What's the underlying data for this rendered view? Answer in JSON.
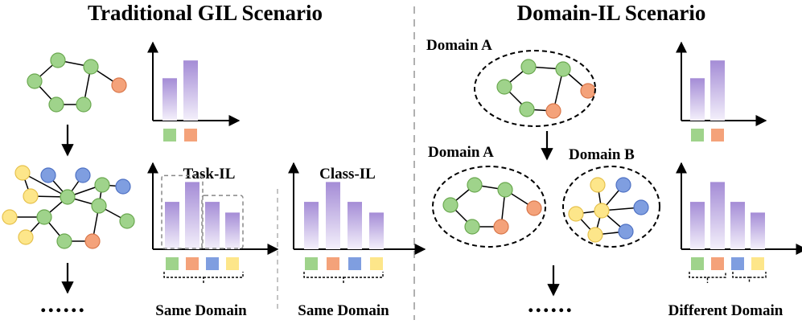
{
  "titles": {
    "left": "Traditional GIL Scenario",
    "right": "Domain-IL Scenario"
  },
  "labels": {
    "task_il": "Task-IL",
    "class_il": "Class-IL",
    "same_domain_1": "Same Domain",
    "same_domain_2": "Same Domain",
    "domain_a_top": "Domain A",
    "domain_a_bottom": "Domain A",
    "domain_b": "Domain B",
    "different_domain": "Different Domain",
    "ellipsis_left": "......",
    "ellipsis_right": "......"
  },
  "colors": {
    "green": "#9fd38b",
    "green_stroke": "#6aa84f",
    "orange": "#f4a27a",
    "orange_stroke": "#d9774a",
    "blue": "#7f9ee0",
    "blue_stroke": "#4f72c4",
    "yellow": "#fde68a",
    "yellow_stroke": "#e6c14c",
    "bar_top": "#a48cd6",
    "bar_bottom": "#f4f0fb",
    "divider": "#b0b0b0"
  },
  "chart_data": [
    {
      "id": "trad-stage1",
      "type": "bar",
      "values": [
        0.62,
        0.88
      ],
      "class_colors": [
        "green",
        "orange"
      ]
    },
    {
      "id": "task-il",
      "type": "bar",
      "values": [
        0.62,
        0.88,
        0.62,
        0.48
      ],
      "class_colors": [
        "green",
        "orange",
        "blue",
        "yellow"
      ],
      "groups": [
        [
          0,
          1
        ],
        [
          2,
          3
        ]
      ]
    },
    {
      "id": "class-il",
      "type": "bar",
      "values": [
        0.62,
        0.88,
        0.62,
        0.48
      ],
      "class_colors": [
        "green",
        "orange",
        "blue",
        "yellow"
      ]
    },
    {
      "id": "domain-stage1",
      "type": "bar",
      "values": [
        0.62,
        0.88
      ],
      "class_colors": [
        "green",
        "orange"
      ]
    },
    {
      "id": "domain-stage2",
      "type": "bar",
      "values": [
        0.62,
        0.88,
        0.62,
        0.48
      ],
      "class_colors": [
        "green",
        "orange",
        "blue",
        "yellow"
      ]
    }
  ]
}
